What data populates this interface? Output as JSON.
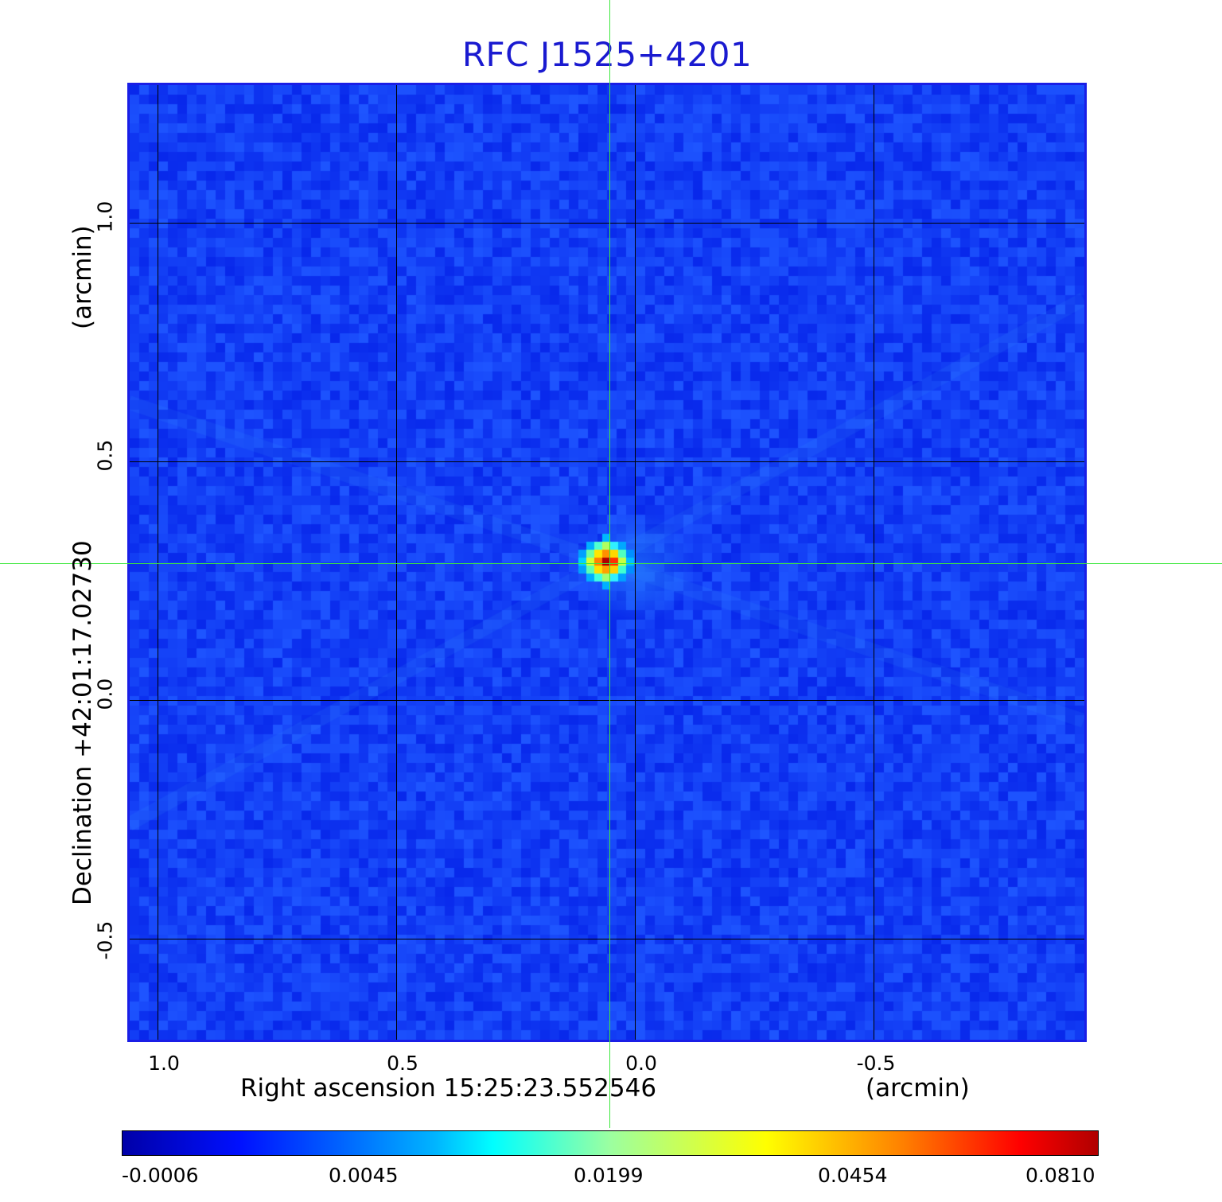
{
  "title": "RFC J1525+4201",
  "x_axis": {
    "label": "Right ascension  15:25:23.552546",
    "unit": "(arcmin)",
    "ticks": [
      "1.0",
      "0.5",
      "0.0",
      "-0.5"
    ],
    "tick_values": [
      1.0,
      0.5,
      0.0,
      -0.5
    ]
  },
  "y_axis": {
    "label": "Declination  +42:01:17.02730",
    "unit": "(arcmin)",
    "ticks": [
      "1.0",
      "0.5",
      "0.0",
      "-0.5"
    ],
    "tick_values": [
      1.0,
      0.5,
      0.0,
      -0.5
    ]
  },
  "image": {
    "source_offset_arcmin": {
      "ra": 0.06,
      "dec": 0.29
    },
    "background_color": "#1236f0",
    "crosshair_color": "#3ee83e"
  },
  "colorbar": {
    "colormap": "jet",
    "labels": [
      "-0.0006",
      "0.0045",
      "0.0199",
      "0.0454",
      "0.0810"
    ]
  }
}
